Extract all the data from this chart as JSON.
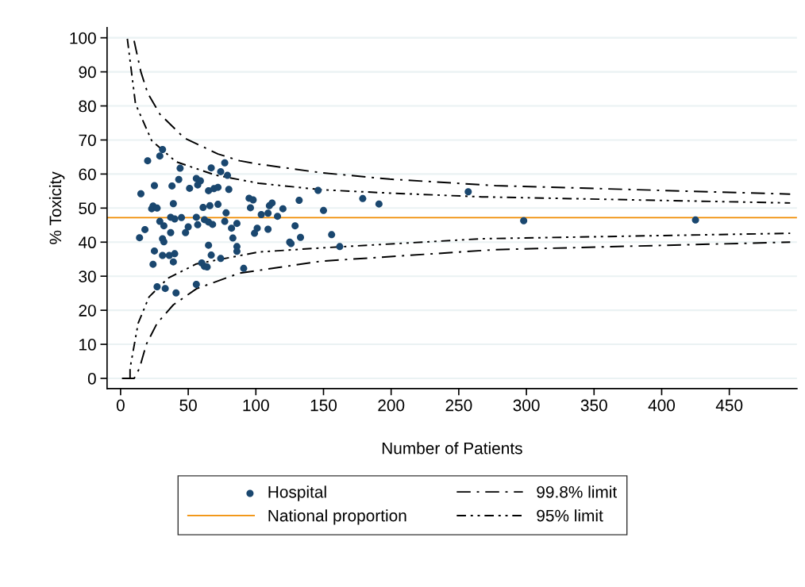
{
  "chart_data": {
    "type": "scatter",
    "xlabel": "Number of Patients",
    "ylabel": "% Toxicity",
    "xlim": [
      -10,
      500
    ],
    "ylim": [
      -3,
      103
    ],
    "xticks": [
      0,
      50,
      100,
      150,
      200,
      250,
      300,
      350,
      400,
      450
    ],
    "yticks": [
      0,
      10,
      20,
      30,
      40,
      50,
      60,
      70,
      80,
      90,
      100
    ],
    "grid": "y",
    "legend": "bottom",
    "marker": "circle",
    "series": [
      {
        "name": "Hospital",
        "color": "#1a476f",
        "x": [
          31,
          29,
          20,
          44,
          67,
          77,
          74,
          79,
          56,
          59,
          43,
          25,
          38,
          57,
          51,
          65,
          69,
          72,
          80,
          15,
          95,
          98,
          96,
          104,
          39,
          72,
          61,
          66,
          24,
          23,
          27,
          78,
          37,
          40,
          45,
          56,
          62,
          65,
          68,
          77,
          86,
          29,
          32,
          50,
          57,
          82,
          101,
          99,
          18,
          14,
          37,
          48,
          31,
          32,
          83,
          65,
          86,
          86,
          25,
          31,
          36,
          40,
          67,
          74,
          24,
          39,
          60,
          62,
          64,
          91,
          27,
          33,
          41,
          56,
          109,
          110,
          112,
          120,
          116,
          132,
          146,
          150,
          179,
          191,
          257,
          109,
          129,
          133,
          125,
          126,
          156,
          162,
          298,
          425
        ],
        "values": [
          67.2,
          65.3,
          63.9,
          61.7,
          61.8,
          63.3,
          60.7,
          59.6,
          58.7,
          58.0,
          58.4,
          56.6,
          56.5,
          56.8,
          55.8,
          55.1,
          55.7,
          56.1,
          55.5,
          54.2,
          52.9,
          52.4,
          50.1,
          48.1,
          51.3,
          51.1,
          50.2,
          50.7,
          50.6,
          49.8,
          50.0,
          48.6,
          47.3,
          46.8,
          47.2,
          47.3,
          46.6,
          45.9,
          45.2,
          46.1,
          45.5,
          46.1,
          44.8,
          44.5,
          45.1,
          44.1,
          44.1,
          42.6,
          43.7,
          41.3,
          42.8,
          42.8,
          41.0,
          40.1,
          41.2,
          39.1,
          38.7,
          37.3,
          37.4,
          36.1,
          36.1,
          36.6,
          36.2,
          35.2,
          33.5,
          34.2,
          33.9,
          32.9,
          32.7,
          32.3,
          26.9,
          26.4,
          25.1,
          27.6,
          48.5,
          50.7,
          51.5,
          49.8,
          47.6,
          52.3,
          55.2,
          49.3,
          52.8,
          51.2,
          54.8,
          43.8,
          44.8,
          41.4,
          40.0,
          39.6,
          42.2,
          38.7,
          46.3,
          46.5
        ]
      },
      {
        "name": "99.8% limit",
        "type": "line",
        "color": "#000000",
        "line_style": "dashdot",
        "marker": "none",
        "x": [
          10,
          15,
          20,
          29,
          47,
          72,
          88,
          102,
          148,
          199,
          277,
          495,
          null,
          1,
          10,
          14,
          19,
          27,
          39,
          56,
          88,
          102,
          148,
          277,
          495
        ],
        "values": [
          99.1,
          90,
          83.8,
          77.6,
          70.6,
          65.9,
          63.9,
          62.9,
          60.4,
          58.5,
          56.6,
          54.1,
          null,
          0,
          0,
          3,
          10,
          16.2,
          21.6,
          26.3,
          30.9,
          31.7,
          34.4,
          37.8,
          40.0
        ]
      },
      {
        "name": "95% limit",
        "type": "line",
        "color": "#000000",
        "line_style": "dashdotdot",
        "marker": "none",
        "x": [
          5,
          11,
          23,
          41,
          70,
          102,
          148,
          199,
          267,
          495,
          null,
          7,
          7,
          13,
          21,
          35,
          56,
          102,
          148,
          267,
          495
        ],
        "values": [
          99.7,
          80.6,
          69.8,
          63.6,
          59.7,
          57.3,
          55.4,
          54.4,
          53.3,
          51.5,
          null,
          0,
          3,
          16.2,
          23.9,
          29.4,
          33.6,
          37.1,
          38.3,
          41.0,
          42.6
        ]
      }
    ],
    "ref_lines": [
      {
        "axis": "y",
        "value": 47.2,
        "label": "National proportion",
        "color": "#f08c00",
        "line_style": "solid"
      }
    ]
  }
}
